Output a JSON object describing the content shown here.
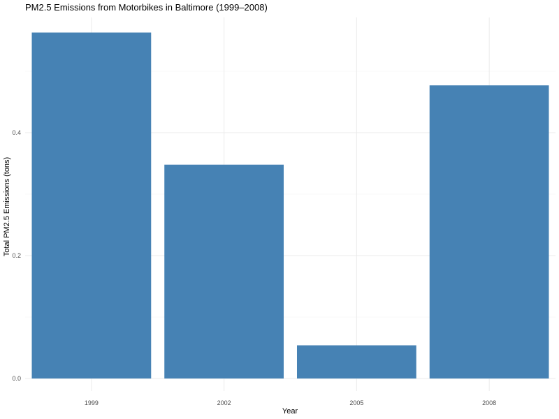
{
  "chart_data": {
    "type": "bar",
    "title": "PM2.5 Emissions from Motorbikes in Baltimore (1999–2008)",
    "xlabel": "Year",
    "ylabel": "Total PM2.5 Emissions (tons)",
    "categories": [
      "1999",
      "2002",
      "2005",
      "2008"
    ],
    "values": [
      0.563,
      0.348,
      0.054,
      0.477
    ],
    "ylim": [
      0,
      0.59
    ],
    "yticks": [
      0,
      0.2,
      0.4
    ],
    "ytick_labels": [
      "0.0",
      "0.2",
      "0.4"
    ],
    "bar_color": "#4682B4",
    "grid": true,
    "legend": "none"
  }
}
